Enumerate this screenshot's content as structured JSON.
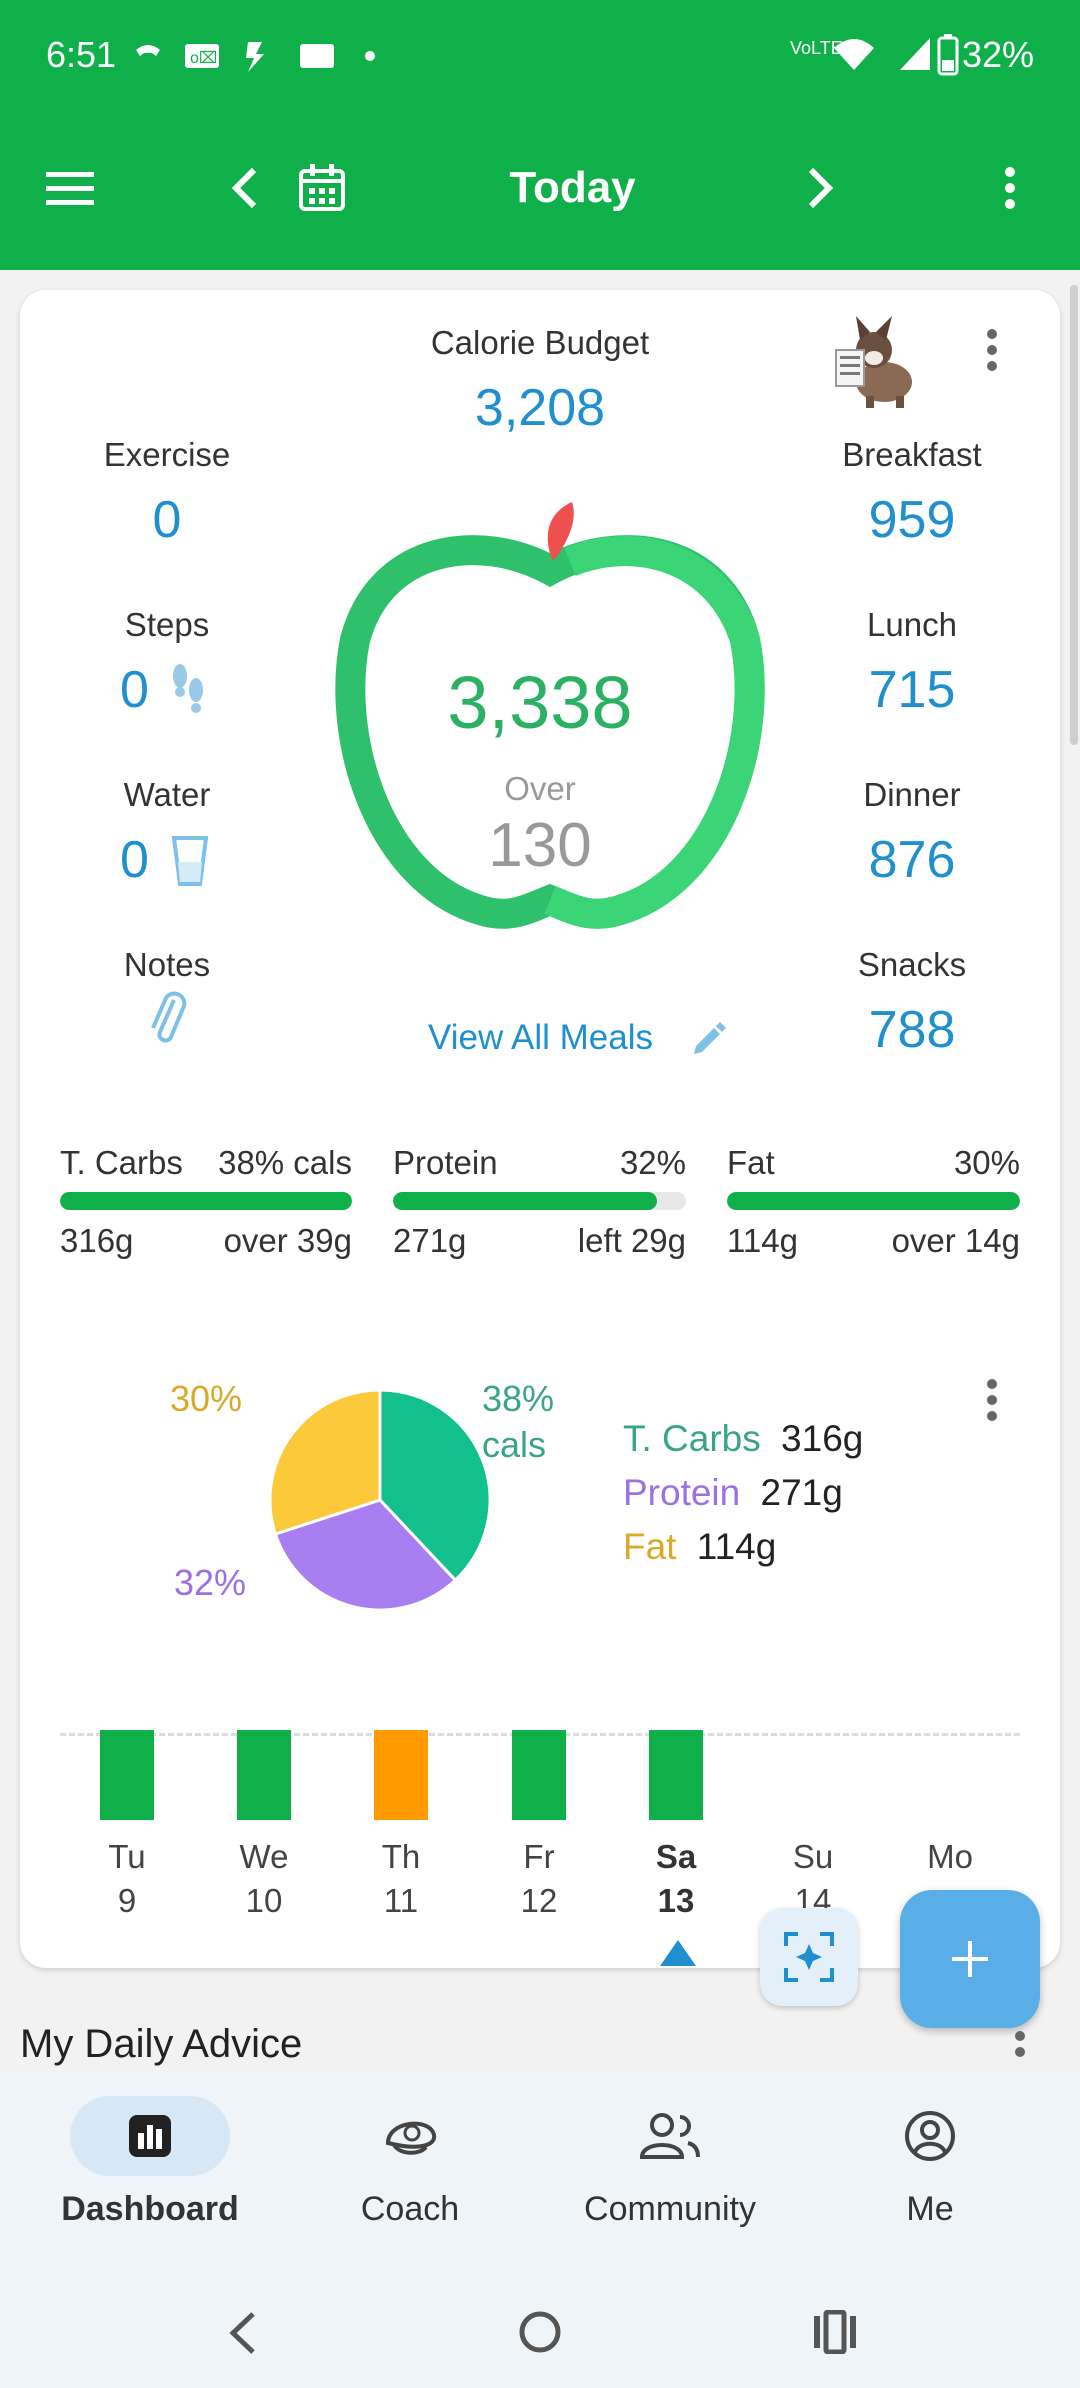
{
  "status": {
    "time": "6:51",
    "battery": "32%",
    "network": "VoLTE"
  },
  "appbar": {
    "title": "Today"
  },
  "summary": {
    "calorie_budget_label": "Calorie Budget",
    "calorie_budget_value": "3,208",
    "exercise_label": "Exercise",
    "exercise_value": "0",
    "steps_label": "Steps",
    "steps_value": "0",
    "water_label": "Water",
    "water_value": "0",
    "notes_label": "Notes",
    "breakfast_label": "Breakfast",
    "breakfast_value": "959",
    "lunch_label": "Lunch",
    "lunch_value": "715",
    "dinner_label": "Dinner",
    "dinner_value": "876",
    "snacks_label": "Snacks",
    "snacks_value": "788",
    "total": "3,338",
    "over_label": "Over",
    "over_value": "130",
    "view_all_meals": "View All Meals"
  },
  "macros": [
    {
      "name": "T. Carbs",
      "pct": "38% cals",
      "grams": "316g",
      "status": "over 39g",
      "fill": 1.0
    },
    {
      "name": "Protein",
      "pct": "32%",
      "grams": "271g",
      "status": "left 29g",
      "fill": 0.9
    },
    {
      "name": "Fat",
      "pct": "30%",
      "grams": "114g",
      "status": "over 14g",
      "fill": 1.0
    }
  ],
  "chart_data": {
    "type": "pie",
    "labels": [
      "T. Carbs",
      "Protein",
      "Fat"
    ],
    "values": [
      38,
      32,
      30
    ],
    "slice_labels": [
      "38%",
      "32%",
      "30%"
    ],
    "slice_suffix": "cals",
    "grams": [
      "316g",
      "271g",
      "114g"
    ],
    "colors": [
      "#12c08e",
      "#a97ef0",
      "#fbc93a"
    ]
  },
  "week": {
    "days": [
      {
        "name": "Tu",
        "num": "9",
        "status": "green"
      },
      {
        "name": "We",
        "num": "10",
        "status": "green"
      },
      {
        "name": "Th",
        "num": "11",
        "status": "orange"
      },
      {
        "name": "Fr",
        "num": "12",
        "status": "green"
      },
      {
        "name": "Sa",
        "num": "13",
        "status": "green",
        "selected": true
      },
      {
        "name": "Su",
        "num": "14",
        "status": "none"
      },
      {
        "name": "Mo",
        "num": "",
        "status": "none"
      }
    ]
  },
  "advice_title": "My Daily Advice",
  "nav": {
    "dashboard": "Dashboard",
    "coach": "Coach",
    "community": "Community",
    "me": "Me"
  },
  "colors": {
    "brand_green": "#0fb04a",
    "value_blue": "#1f8fd0",
    "fab_blue": "#5aaee8",
    "orange": "#ff9a00"
  }
}
